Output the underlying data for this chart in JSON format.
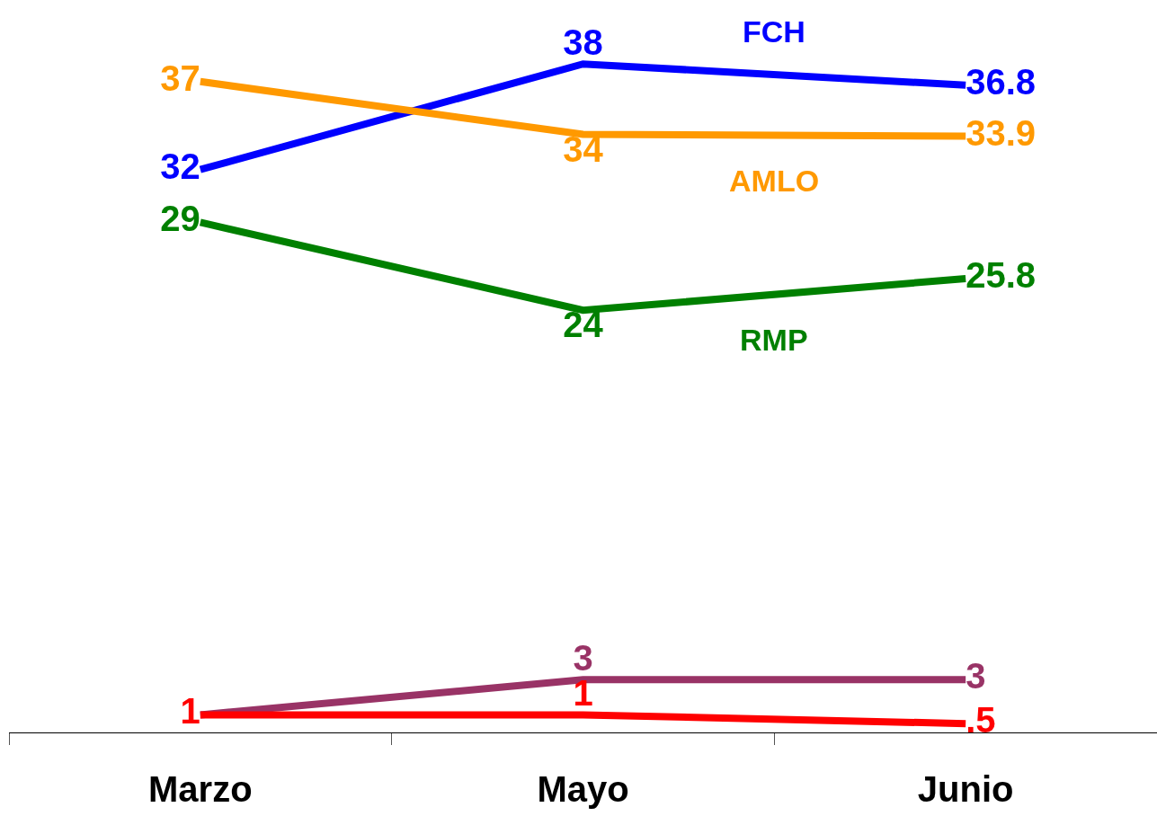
{
  "chart_data": {
    "type": "line",
    "categories": [
      "Marzo",
      "Mayo",
      "Junio"
    ],
    "legend": false,
    "series": [
      {
        "name": "FCH",
        "color": "#0000ff",
        "values": [
          32,
          38,
          36.8
        ],
        "value_labels": [
          "32",
          "38",
          "36.8"
        ]
      },
      {
        "name": "AMLO",
        "color": "#ff9900",
        "values": [
          37,
          34,
          33.9
        ],
        "value_labels": [
          "37",
          "34",
          "33.9"
        ]
      },
      {
        "name": "RMP",
        "color": "#008000",
        "values": [
          29,
          24,
          25.8
        ],
        "value_labels": [
          "29",
          "24",
          "25.8"
        ]
      },
      {
        "color": "#993366",
        "values": [
          1,
          3,
          3
        ],
        "value_labels": [
          null,
          "3",
          "3"
        ]
      },
      {
        "color": "#ff0000",
        "values": [
          1,
          1,
          0.5
        ],
        "value_labels": [
          "1",
          "1",
          ".5"
        ]
      }
    ]
  }
}
